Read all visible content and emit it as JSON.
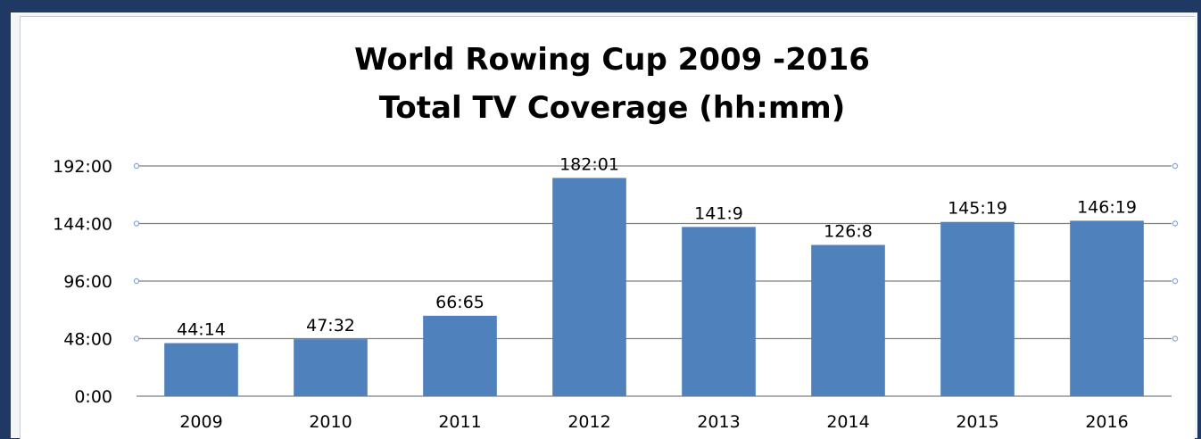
{
  "chart_data": {
    "type": "bar",
    "title": "World Rowing Cup 2009 -2016",
    "subtitle": "Total TV Coverage (hh:mm)",
    "xlabel": "",
    "ylabel": "",
    "categories": [
      "2009",
      "2010",
      "2011",
      "2012",
      "2013",
      "2014",
      "2015",
      "2016"
    ],
    "values": [
      44.23,
      47.53,
      67.08,
      182.02,
      141.15,
      126.13,
      145.32,
      146.32
    ],
    "data_labels": [
      "44:14",
      "47:32",
      "66:65",
      "182:01",
      "141:9",
      "126:8",
      "145:19",
      "146:19"
    ],
    "y_ticks": [
      0,
      48,
      96,
      144,
      192
    ],
    "y_tick_labels": [
      "0:00",
      "48:00",
      "96:00",
      "144:00",
      "192:00"
    ],
    "ylim": [
      0,
      192
    ],
    "grid": true,
    "legend": "none",
    "colors": {
      "bar": "#4f81bd",
      "grid": "#7f7f7f",
      "background": "#1f3864"
    }
  }
}
